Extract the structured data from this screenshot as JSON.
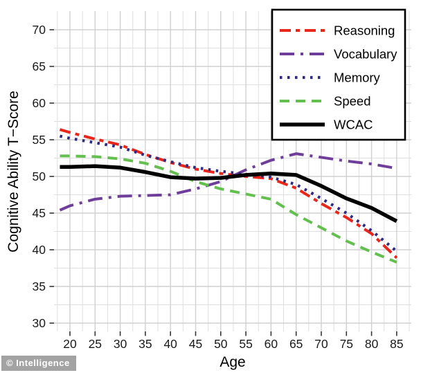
{
  "watermark": {
    "text": "© Intelligence"
  },
  "chart_data": {
    "type": "line",
    "title": "",
    "xlabel": "Age",
    "ylabel": "Cognitive Ability T−Score",
    "x_ticks": [
      20,
      25,
      30,
      35,
      40,
      45,
      50,
      55,
      60,
      65,
      70,
      75,
      80,
      85
    ],
    "y_ticks": [
      30,
      35,
      40,
      45,
      50,
      55,
      60,
      65,
      70
    ],
    "xlim": [
      16.8,
      88.9
    ],
    "ylim": [
      28.9,
      72.5
    ],
    "grid": {
      "on": true,
      "minor_step": 2.5,
      "major_color": "#d0d0d0",
      "minor_color": "#dfdfdf"
    },
    "legend_position": "top-right",
    "x": [
      18,
      20,
      25,
      30,
      35,
      40,
      45,
      50,
      55,
      60,
      65,
      70,
      75,
      80,
      85
    ],
    "series": [
      {
        "name": "Reasoning",
        "color": "#e8261b",
        "dash": "16 7 6 7",
        "width": 4,
        "values": [
          56.4,
          56.0,
          55.1,
          54.3,
          53.0,
          51.9,
          51.0,
          50.4,
          50.0,
          49.7,
          48.4,
          46.3,
          44.4,
          42.2,
          38.9
        ]
      },
      {
        "name": "Vocabulary",
        "color": "#6f3e9a",
        "dash": "21 9 4 9",
        "width": 4,
        "values": [
          45.4,
          46.0,
          46.9,
          47.3,
          47.4,
          47.5,
          48.3,
          49.3,
          50.9,
          52.2,
          53.1,
          52.6,
          52.1,
          51.7,
          51.1
        ]
      },
      {
        "name": "Memory",
        "color": "#2d2a80",
        "dash": "3.5 7.5",
        "width": 4.2,
        "values": [
          55.5,
          55.2,
          54.6,
          54.0,
          52.9,
          52.0,
          51.2,
          50.7,
          50.3,
          49.9,
          48.9,
          47.0,
          45.0,
          42.6,
          39.8
        ]
      },
      {
        "name": "Speed",
        "color": "#63c04f",
        "dash": "14 9",
        "width": 4,
        "values": [
          52.8,
          52.8,
          52.7,
          52.4,
          51.8,
          50.7,
          49.3,
          48.3,
          47.6,
          46.9,
          44.8,
          43.0,
          41.2,
          39.7,
          38.3
        ]
      },
      {
        "name": "WCAC",
        "color": "#000000",
        "dash": "",
        "width": 5.5,
        "values": [
          51.3,
          51.3,
          51.4,
          51.2,
          50.6,
          49.9,
          49.7,
          49.8,
          50.2,
          50.4,
          50.2,
          48.7,
          47.0,
          45.7,
          43.9
        ]
      }
    ],
    "tick_color": "#333333",
    "text_color": "#1a1a1a"
  }
}
